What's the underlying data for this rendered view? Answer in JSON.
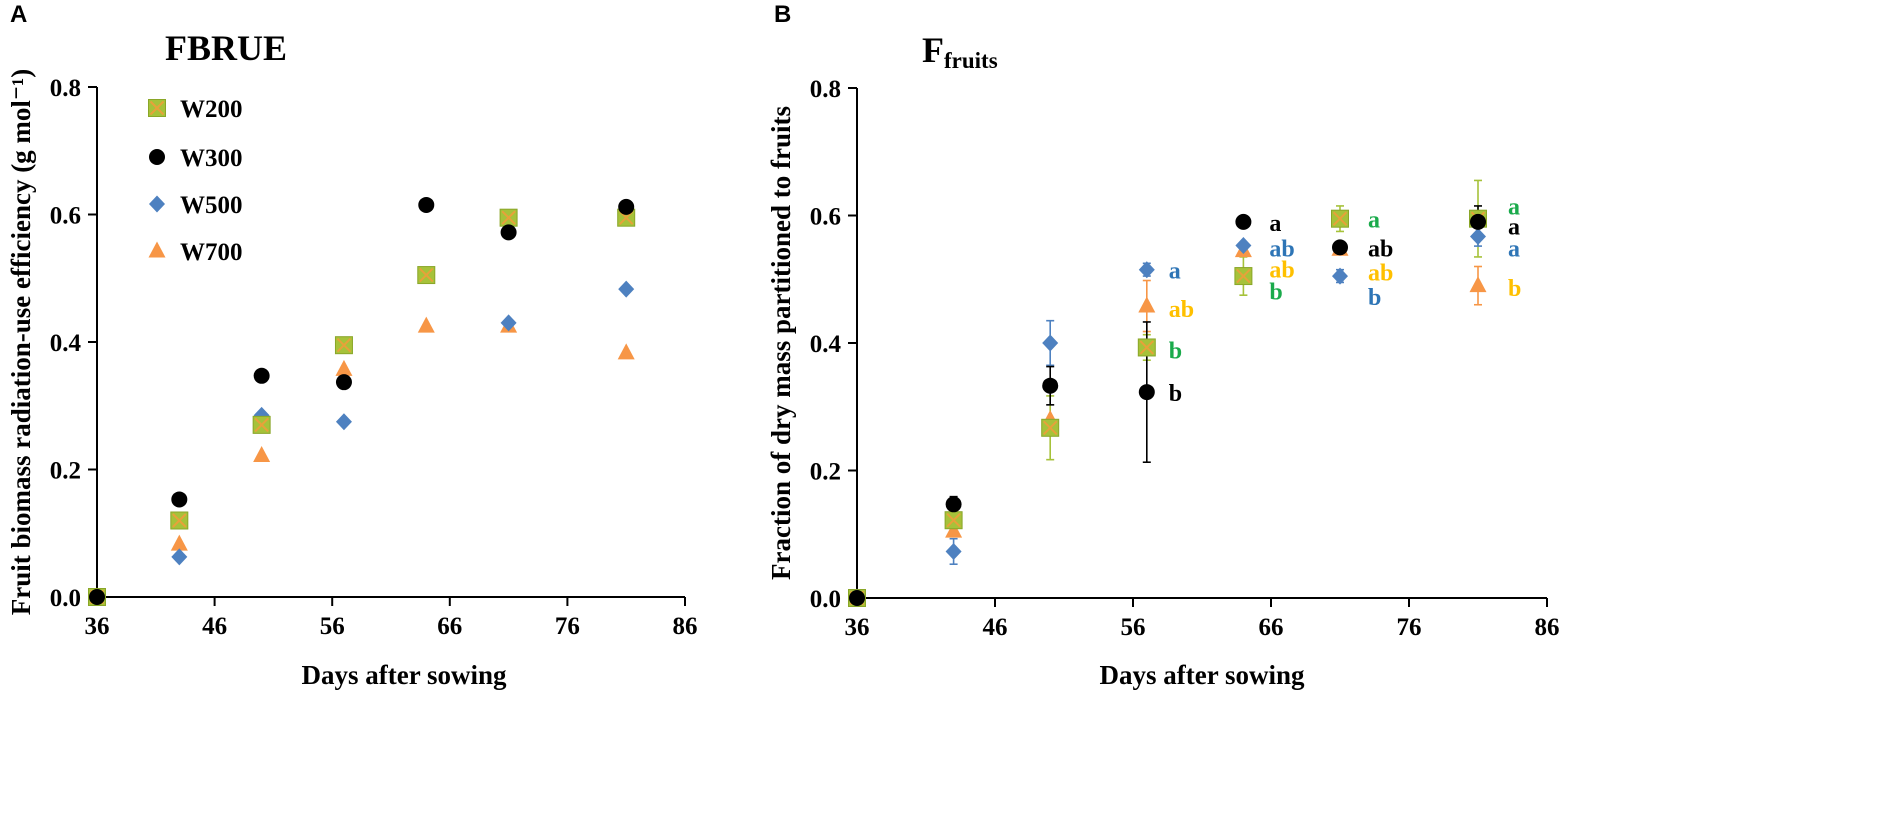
{
  "chart_data": [
    {
      "type": "scatter",
      "panel": "A",
      "title": "FBRUE",
      "xlabel": "Days after sowing",
      "ylabel": "Fruit biomass radiation-use efficiency (g mol⁻¹)",
      "xlim": [
        36,
        86
      ],
      "ylim": [
        0,
        0.8
      ],
      "x_ticks": [
        "36",
        "46",
        "56",
        "66",
        "76",
        "86"
      ],
      "y_ticks": [
        "0.0",
        "0.2",
        "0.4",
        "0.6",
        "0.8"
      ],
      "legend": [
        "W200",
        "W300",
        "W500",
        "W700"
      ],
      "series": [
        {
          "name": "W200",
          "marker": "square-x",
          "color": "#a6c23a",
          "x": [
            36,
            43,
            50,
            57,
            64,
            71,
            81
          ],
          "y": [
            0.0,
            0.12,
            0.27,
            0.395,
            0.505,
            0.595,
            0.595
          ]
        },
        {
          "name": "W300",
          "marker": "circle",
          "color": "#000000",
          "x": [
            36,
            43,
            50,
            57,
            64,
            71,
            81
          ],
          "y": [
            0.0,
            0.153,
            0.347,
            0.337,
            0.615,
            0.572,
            0.612
          ]
        },
        {
          "name": "W500",
          "marker": "diamond",
          "color": "#4e81c0",
          "x": [
            36,
            43,
            50,
            57,
            64,
            71,
            81
          ],
          "y": [
            0.0,
            0.063,
            0.285,
            0.275,
            0.505,
            0.43,
            0.483
          ]
        },
        {
          "name": "W700",
          "marker": "triangle",
          "color": "#f79646",
          "x": [
            36,
            43,
            50,
            57,
            64,
            71,
            81
          ],
          "y": [
            0.0,
            0.083,
            0.222,
            0.357,
            0.425,
            0.425,
            0.383
          ]
        }
      ]
    },
    {
      "type": "scatter",
      "panel": "B",
      "title_main": "F",
      "title_sub": "fruits",
      "xlabel": "Days after sowing",
      "ylabel": "Fraction of dry mass partitioned to fruits",
      "xlim": [
        36,
        86
      ],
      "ylim": [
        0,
        0.8
      ],
      "x_ticks": [
        "36",
        "46",
        "56",
        "66",
        "76",
        "86"
      ],
      "y_ticks": [
        "0.0",
        "0.2",
        "0.4",
        "0.6",
        "0.8"
      ],
      "series": [
        {
          "name": "W200",
          "marker": "square-x",
          "color": "#a6c23a",
          "x": [
            36,
            43,
            50,
            57,
            64,
            71,
            81
          ],
          "y": [
            0.0,
            0.122,
            0.267,
            0.393,
            0.505,
            0.595,
            0.595
          ],
          "err": [
            0,
            0.01,
            0.05,
            0.02,
            0.03,
            0.02,
            0.06
          ]
        },
        {
          "name": "W300",
          "marker": "circle",
          "color": "#000000",
          "x": [
            36,
            43,
            50,
            57,
            64,
            71,
            81
          ],
          "y": [
            0.0,
            0.147,
            0.333,
            0.323,
            0.59,
            0.55,
            0.59
          ],
          "err": [
            0,
            0.012,
            0.03,
            0.11,
            0.0,
            0.0,
            0.025
          ]
        },
        {
          "name": "W500",
          "marker": "diamond",
          "color": "#4e81c0",
          "x": [
            36,
            43,
            50,
            57,
            64,
            71,
            81
          ],
          "y": [
            0.0,
            0.073,
            0.4,
            0.515,
            0.553,
            0.505,
            0.567
          ],
          "err": [
            0,
            0.02,
            0.035,
            0.01,
            0.0,
            0.01,
            0.015
          ]
        },
        {
          "name": "W700",
          "marker": "triangle",
          "color": "#f79646",
          "x": [
            36,
            43,
            50,
            57,
            64,
            71,
            81
          ],
          "y": [
            0.0,
            0.105,
            0.28,
            0.458,
            0.545,
            0.547,
            0.49
          ],
          "err": [
            0,
            0.0,
            0.0,
            0.04,
            0.0,
            0.0,
            0.03
          ]
        }
      ],
      "annotations": [
        {
          "text": "a",
          "x": 64,
          "y": 0.59,
          "color": "#000000"
        },
        {
          "text": "ab",
          "x": 64,
          "y": 0.55,
          "color": "#2e75b6"
        },
        {
          "text": "ab",
          "x": 64,
          "y": 0.517,
          "color": "#ffc000"
        },
        {
          "text": "b",
          "x": 64,
          "y": 0.482,
          "color": "#1aaa4b"
        },
        {
          "text": "a",
          "x": 57,
          "y": 0.515,
          "color": "#2e75b6"
        },
        {
          "text": "ab",
          "x": 57,
          "y": 0.455,
          "color": "#ffc000"
        },
        {
          "text": "b",
          "x": 57,
          "y": 0.39,
          "color": "#1aaa4b"
        },
        {
          "text": "b",
          "x": 57,
          "y": 0.323,
          "color": "#000000"
        },
        {
          "text": "a",
          "x": 71,
          "y": 0.595,
          "color": "#1aaa4b"
        },
        {
          "text": "ab",
          "x": 71,
          "y": 0.55,
          "color": "#000000"
        },
        {
          "text": "ab",
          "x": 71,
          "y": 0.512,
          "color": "#ffc000"
        },
        {
          "text": "b",
          "x": 71,
          "y": 0.474,
          "color": "#2e75b6"
        },
        {
          "text": "a",
          "x": 81,
          "y": 0.616,
          "color": "#1aaa4b"
        },
        {
          "text": "a",
          "x": 81,
          "y": 0.584,
          "color": "#000000"
        },
        {
          "text": "a",
          "x": 81,
          "y": 0.55,
          "color": "#2e75b6"
        },
        {
          "text": "b",
          "x": 81,
          "y": 0.488,
          "color": "#ffc000"
        }
      ]
    }
  ]
}
